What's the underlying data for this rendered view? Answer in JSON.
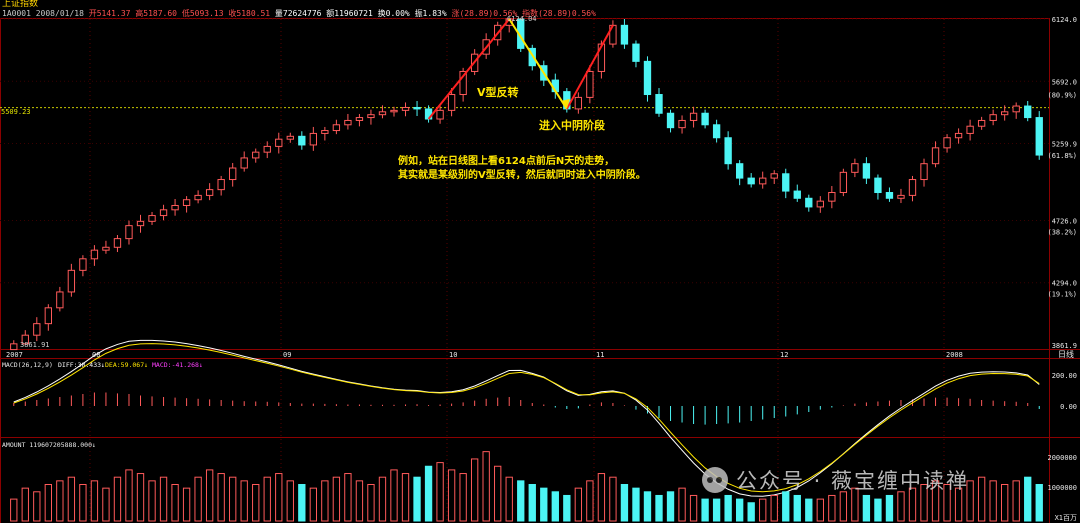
{
  "header": {
    "title": "上证指数",
    "code": "1A0001",
    "date": "2008/01/18",
    "open": "开5141.37",
    "high": "高5187.60",
    "low": "低5093.13",
    "close": "收5180.51",
    "volume": "量72624776",
    "amount": "额11960721",
    "turnover": "换0.00%",
    "amplitude": "振1.83%",
    "change": "涨(28.89)0.56%",
    "index_change": "指数(28.89)0.56%"
  },
  "colors": {
    "up": "#ff5a5a",
    "down": "#4cf4f4",
    "axis_label": "#e8e8e8",
    "grid": "#8b0000",
    "annotation": "#ffe600",
    "reference_line": "#c8c800"
  },
  "annotations": {
    "v_reversal": "V型反转",
    "enter_middle_bear": "进入中阴阶段",
    "note_line1": "例如，站在日线图上看6124点前后N天的走势，",
    "note_line2": "其实就是某级别的V型反转，然后就同时进入中阴阶段。",
    "peak_label": "6124.04",
    "low_label": "3861.91",
    "ref_label": "5509.23"
  },
  "right_axis": {
    "price_ticks": [
      "6124.0",
      "5692.0",
      "5259.9",
      "4726.0",
      "4294.0",
      "3861.9"
    ],
    "pct_ticks": [
      "(80.9%)",
      "(61.8%)",
      "(38.2%)",
      "(19.1%)"
    ],
    "period": "日线",
    "macd_ticks": [
      "200.00",
      "0.00"
    ],
    "amount_ticks": [
      "2000000",
      "1000000"
    ],
    "amount_unit": "X1百万"
  },
  "indicators": {
    "macd_label": "MACD(26,12,9)",
    "diff": "DIFF:38.433↓",
    "dea": "DEA:59.067↓",
    "macd": "MACD:-41.268↓",
    "amount_label": "AMOUNT 119607205888.000↓"
  },
  "watermark": "公众号 · 薇宝缠中读禅",
  "chart_data": {
    "type": "candlestick",
    "x_labels": [
      "2007",
      "08",
      "09",
      "10",
      "11",
      "12",
      "2008"
    ],
    "y_range": [
      3861.9,
      6124.0
    ],
    "reference_level": 5509.23,
    "peak": 6124.04,
    "low": 3861.91,
    "path": [
      3870,
      3930,
      4010,
      4120,
      4230,
      4380,
      4460,
      4520,
      4540,
      4600,
      4690,
      4720,
      4760,
      4800,
      4830,
      4870,
      4900,
      4940,
      5010,
      5090,
      5160,
      5200,
      5240,
      5290,
      5310,
      5250,
      5330,
      5350,
      5390,
      5420,
      5440,
      5460,
      5480,
      5490,
      5510,
      5500,
      5430,
      5490,
      5600,
      5760,
      5880,
      5980,
      6080,
      6124,
      5920,
      5800,
      5700,
      5620,
      5500,
      5580,
      5760,
      5950,
      6080,
      5950,
      5830,
      5600,
      5470,
      5370,
      5420,
      5470,
      5390,
      5300,
      5120,
      5020,
      4980,
      5020,
      5050,
      4930,
      4880,
      4820,
      4860,
      4920,
      5060,
      5120,
      5020,
      4920,
      4880,
      4900,
      5010,
      5120,
      5230,
      5300,
      5330,
      5380,
      5420,
      5460,
      5480,
      5520,
      5440,
      5180
    ],
    "macd_hist": [
      0.1,
      0.15,
      0.2,
      0.25,
      0.3,
      0.35,
      0.4,
      0.45,
      0.45,
      0.42,
      0.4,
      0.35,
      0.32,
      0.3,
      0.28,
      0.26,
      0.24,
      0.22,
      0.2,
      0.18,
      0.16,
      0.15,
      0.14,
      0.12,
      0.1,
      0.08,
      0.08,
      0.07,
      0.06,
      0.05,
      0.05,
      0.04,
      0.04,
      0.04,
      0.05,
      0.06,
      0.03,
      0.05,
      0.08,
      0.12,
      0.18,
      0.24,
      0.28,
      0.3,
      0.2,
      0.1,
      0.05,
      -0.05,
      -0.1,
      -0.08,
      0.05,
      0.12,
      0.1,
      0.02,
      -0.12,
      -0.25,
      -0.4,
      -0.5,
      -0.55,
      -0.6,
      -0.62,
      -0.6,
      -0.58,
      -0.55,
      -0.5,
      -0.45,
      -0.4,
      -0.35,
      -0.28,
      -0.2,
      -0.12,
      -0.05,
      0.02,
      0.08,
      0.12,
      0.15,
      0.18,
      0.2,
      0.22,
      0.25,
      0.28,
      0.28,
      0.26,
      0.24,
      0.2,
      0.18,
      0.16,
      0.14,
      0.1,
      -0.1
    ],
    "amount": [
      0.3,
      0.45,
      0.4,
      0.5,
      0.55,
      0.6,
      0.5,
      0.55,
      0.45,
      0.6,
      0.7,
      0.65,
      0.55,
      0.6,
      0.5,
      0.45,
      0.6,
      0.7,
      0.65,
      0.6,
      0.55,
      0.5,
      0.6,
      0.65,
      0.55,
      0.5,
      0.45,
      0.55,
      0.6,
      0.65,
      0.55,
      0.5,
      0.6,
      0.7,
      0.65,
      0.6,
      0.75,
      0.8,
      0.7,
      0.65,
      0.85,
      0.95,
      0.75,
      0.6,
      0.55,
      0.5,
      0.45,
      0.4,
      0.35,
      0.45,
      0.55,
      0.65,
      0.6,
      0.5,
      0.45,
      0.4,
      0.35,
      0.4,
      0.45,
      0.35,
      0.3,
      0.3,
      0.35,
      0.3,
      0.25,
      0.3,
      0.35,
      0.4,
      0.35,
      0.3,
      0.3,
      0.35,
      0.4,
      0.45,
      0.35,
      0.3,
      0.35,
      0.4,
      0.45,
      0.5,
      0.55,
      0.5,
      0.45,
      0.55,
      0.6,
      0.55,
      0.5,
      0.55,
      0.6,
      0.5
    ]
  }
}
